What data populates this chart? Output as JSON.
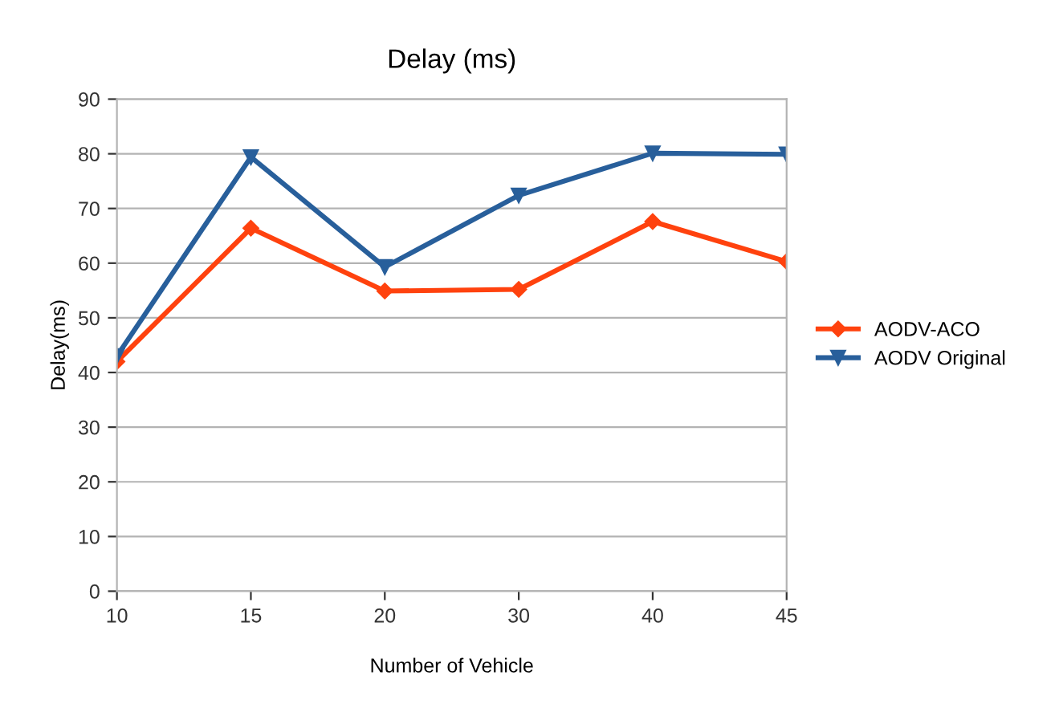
{
  "chart_data": {
    "type": "line",
    "title": "Delay (ms)",
    "xlabel": "Number of Vehicle",
    "ylabel": "Delay(ms)",
    "categories": [
      "10",
      "15",
      "20",
      "30",
      "40",
      "45"
    ],
    "series": [
      {
        "name": "AODV-ACO",
        "color": "#ff420e",
        "marker": "diamond",
        "values": [
          42,
          66.4,
          54.9,
          55.2,
          67.6,
          60.3
        ]
      },
      {
        "name": "AODV Original",
        "color": "#285f9b",
        "marker": "triangle_down",
        "values": [
          43,
          79.4,
          59.3,
          72.4,
          80.1,
          79.9
        ]
      }
    ],
    "ylim": [
      0,
      90
    ],
    "yticks": [
      0,
      10,
      20,
      30,
      40,
      50,
      60,
      70,
      80,
      90
    ],
    "grid": "y",
    "legend": "right",
    "line_style": "solid"
  }
}
